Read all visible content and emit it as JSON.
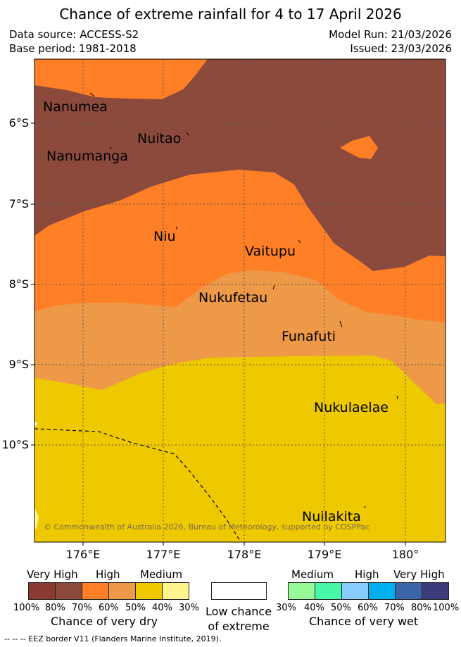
{
  "title": "Chance of extreme rainfall for 4 to 17 April 2026",
  "header": {
    "data_source": "Data source: ACCESS-S2",
    "base_period": "Base period: 1981-2018",
    "model_run": "Model Run: 21/03/2026",
    "issued": "Issued: 23/03/2026"
  },
  "map": {
    "islands": [
      {
        "name": "Nanumea"
      },
      {
        "name": "Nuitao"
      },
      {
        "name": "Nanumanga"
      },
      {
        "name": "Niu"
      },
      {
        "name": "Vaitupu"
      },
      {
        "name": "Nukufetau"
      },
      {
        "name": "Funafuti"
      },
      {
        "name": "Nukulaelae"
      },
      {
        "name": "Nuilakita"
      }
    ],
    "lat_labels": [
      "6°S",
      "7°S",
      "8°S",
      "9°S",
      "10°S"
    ],
    "lon_labels": [
      "176°E",
      "177°E",
      "178°E",
      "179°E",
      "180°"
    ],
    "copyright": "© Commonwealth of Australia 2026, Bureau of Meteorology, supported by COSPPac",
    "colors": {
      "very_high_dry": "#8b4a3c",
      "high_dry": "#ff7f27",
      "medium_high_dry": "#ed9947",
      "medium_dry": "#eec900",
      "low_dry": "#fff68f",
      "ocean_edge": "#ffffff"
    }
  },
  "legend": {
    "dry": {
      "levels": [
        "Very High",
        "High",
        "Medium"
      ],
      "colors": [
        "#8b3a2f",
        "#8b4a3c",
        "#ff7f27",
        "#ed9947",
        "#eec900",
        "#fff68f"
      ],
      "percents": [
        "100%",
        "80%",
        "70%",
        "60%",
        "50%",
        "40%",
        "30%"
      ],
      "caption": "Chance of very dry"
    },
    "low": {
      "caption_line1": "Low chance",
      "caption_line2": "of extreme",
      "color": "#ffffff"
    },
    "wet": {
      "levels": [
        "Medium",
        "High",
        "Very High"
      ],
      "colors": [
        "#98f998",
        "#48f8a8",
        "#88ccff",
        "#00b0f0",
        "#3c64a8",
        "#3c3c7c"
      ],
      "percents": [
        "30%",
        "40%",
        "50%",
        "60%",
        "70%",
        "80%",
        "100%"
      ],
      "caption": "Chance of very wet"
    }
  },
  "footnote": "--  --  -- EEZ border V11 (Flanders Marine Institute, 2019)."
}
